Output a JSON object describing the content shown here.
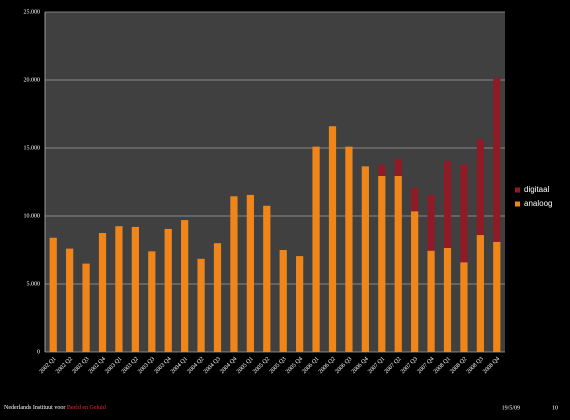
{
  "chart_data": {
    "type": "stacked_bar",
    "categories": [
      "2002 Q1",
      "2002 Q2",
      "2002 Q3",
      "2002 Q4",
      "2003 Q1",
      "2003 Q2",
      "2003 Q3",
      "2003 Q4",
      "2004 Q1",
      "2004 Q2",
      "2004 Q3",
      "2004 Q4",
      "2005 Q1",
      "2005 Q2",
      "2005 Q3",
      "2005 Q4",
      "2006 Q1",
      "2006 Q2",
      "2006 Q3",
      "2006 Q4",
      "2007 Q1",
      "2007 Q2",
      "2007 Q3",
      "2007 Q4",
      "2008 Q1",
      "2008 Q2",
      "2008 Q3",
      "2008 Q4"
    ],
    "series": [
      {
        "name": "analoog",
        "color": "#f0861a",
        "values": [
          8400,
          7600,
          6500,
          8750,
          9250,
          9200,
          7400,
          9050,
          9700,
          6850,
          8000,
          11450,
          11550,
          10750,
          7500,
          7050,
          15100,
          16600,
          15100,
          13650,
          12950,
          12950,
          10350,
          7450,
          7650,
          6600,
          8600,
          8100
        ]
      },
      {
        "name": "digitaal",
        "color": "#8e1b26",
        "values": [
          0,
          0,
          0,
          0,
          0,
          0,
          0,
          0,
          0,
          0,
          0,
          0,
          0,
          0,
          0,
          0,
          0,
          0,
          0,
          0,
          800,
          1250,
          1700,
          4100,
          6400,
          7200,
          7050,
          12050
        ]
      }
    ],
    "ylim": [
      0,
      25000
    ],
    "yticks": [
      0,
      {
        "value": 5000,
        "label": "5.000"
      },
      {
        "value": 10000,
        "label": "10.000"
      },
      {
        "value": 15000,
        "label": "15.000"
      },
      {
        "value": 20000,
        "label": "20.000"
      },
      {
        "value": 25000,
        "label": "25.000"
      }
    ],
    "grid": true,
    "legend": "right"
  },
  "footer": {
    "left": "Nederlands Instituut voor ",
    "highlight": "Beeld en Geluid",
    "date": "19/5/09",
    "page": "10"
  }
}
